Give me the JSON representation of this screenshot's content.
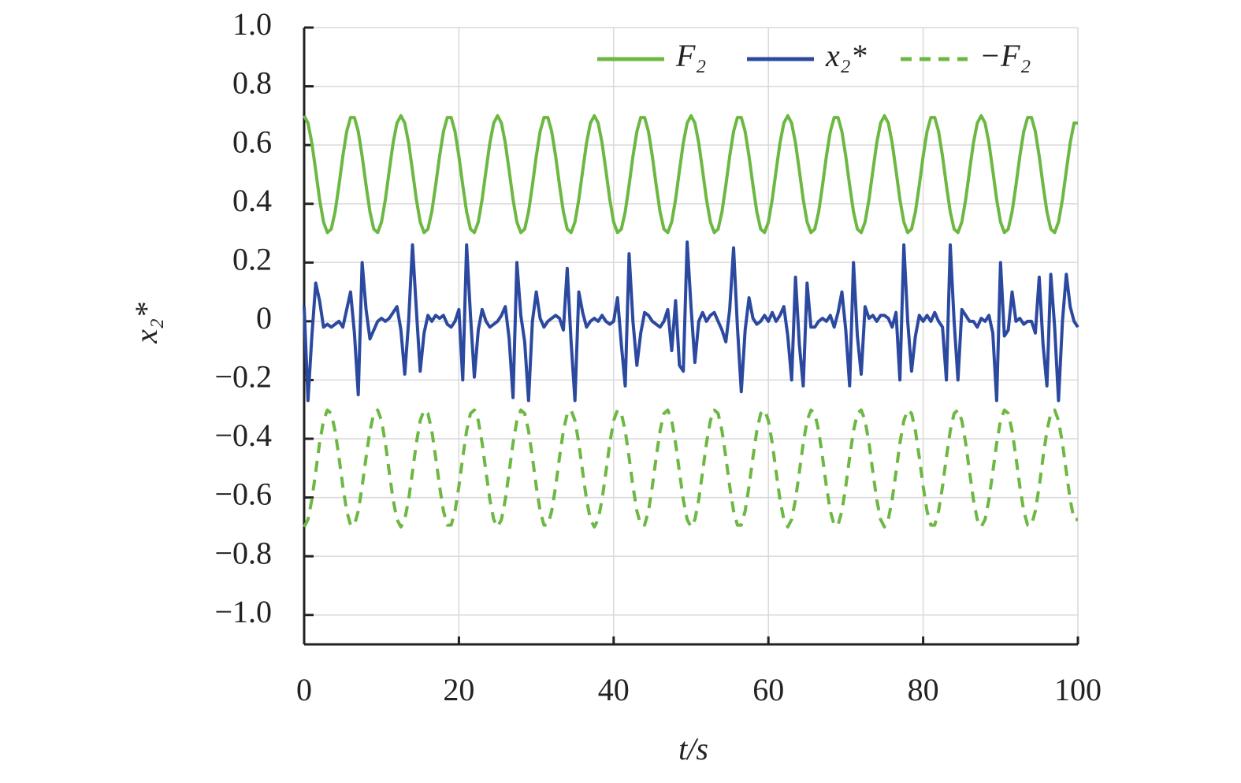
{
  "chart_data": {
    "type": "line",
    "x_label": "t/s",
    "y_label": "x₂*",
    "xlim": [
      0,
      100
    ],
    "ylim": [
      -1.1,
      1.0
    ],
    "xticks": [
      0,
      20,
      40,
      60,
      80,
      100
    ],
    "yticks": [
      {
        "value": 1.0,
        "label": "1.0"
      },
      0.8,
      0.6,
      0.4,
      0.2,
      0,
      {
        "value": -0.2,
        "label": "−0.2"
      },
      {
        "value": -0.4,
        "label": "−0.4"
      },
      {
        "value": -0.6,
        "label": "−0.6"
      },
      {
        "value": -0.8,
        "label": "−0.8"
      },
      {
        "value": -1.0,
        "label": "−1.0"
      }
    ],
    "grid": true,
    "legend": "upper right",
    "x": [
      0,
      0.5,
      1,
      1.5,
      2,
      2.5,
      3,
      3.5,
      4,
      4.5,
      5,
      5.5,
      6,
      6.5,
      7,
      7.5,
      8,
      8.5,
      9,
      9.5,
      10,
      10.5,
      11,
      11.5,
      12,
      12.5,
      13,
      13.5,
      14,
      14.5,
      15,
      15.5,
      16,
      16.5,
      17,
      17.5,
      18,
      18.5,
      19,
      19.5,
      20,
      20.5,
      21,
      21.5,
      22,
      22.5,
      23,
      23.5,
      24,
      24.5,
      25,
      25.5,
      26,
      26.5,
      27,
      27.5,
      28,
      28.5,
      29,
      29.5,
      30,
      30.5,
      31,
      31.5,
      32,
      32.5,
      33,
      33.5,
      34,
      34.5,
      35,
      35.5,
      36,
      36.5,
      37,
      37.5,
      38,
      38.5,
      39,
      39.5,
      40,
      40.5,
      41,
      41.5,
      42,
      42.5,
      43,
      43.5,
      44,
      44.5,
      45,
      45.5,
      46,
      46.5,
      47,
      47.5,
      48,
      48.5,
      49,
      49.5,
      50,
      50.5,
      51,
      51.5,
      52,
      52.5,
      53,
      53.5,
      54,
      54.5,
      55,
      55.5,
      56,
      56.5,
      57,
      57.5,
      58,
      58.5,
      59,
      59.5,
      60,
      60.5,
      61,
      61.5,
      62,
      62.5,
      63,
      63.5,
      64,
      64.5,
      65,
      65.5,
      66,
      66.5,
      67,
      67.5,
      68,
      68.5,
      69,
      69.5,
      70,
      70.5,
      71,
      71.5,
      72,
      72.5,
      73,
      73.5,
      74,
      74.5,
      75,
      75.5,
      76,
      76.5,
      77,
      77.5,
      78,
      78.5,
      79,
      79.5,
      80,
      80.5,
      81,
      81.5,
      82,
      82.5,
      83,
      83.5,
      84,
      84.5,
      85,
      85.5,
      86,
      86.5,
      87,
      87.5,
      88,
      88.5,
      89,
      89.5,
      90,
      90.5,
      91,
      91.5,
      92,
      92.5,
      93,
      93.5,
      94,
      94.5,
      95,
      95.5,
      96,
      96.5,
      97,
      97.5,
      98,
      98.5,
      99,
      99.5,
      100
    ],
    "series": [
      {
        "name": "F₂",
        "color": "#6cb843",
        "style": "solid",
        "values": [
          0.7,
          0.675,
          0.607,
          0.513,
          0.415,
          0.338,
          0.302,
          0.314,
          0.373,
          0.463,
          0.562,
          0.646,
          0.694,
          0.694,
          0.646,
          0.562,
          0.463,
          0.373,
          0.314,
          0.302,
          0.338,
          0.415,
          0.513,
          0.607,
          0.675,
          0.7,
          0.675,
          0.607,
          0.513,
          0.415,
          0.338,
          0.302,
          0.314,
          0.373,
          0.463,
          0.562,
          0.646,
          0.694,
          0.694,
          0.646,
          0.562,
          0.463,
          0.373,
          0.314,
          0.302,
          0.338,
          0.415,
          0.513,
          0.607,
          0.675,
          0.7,
          0.675,
          0.607,
          0.513,
          0.415,
          0.338,
          0.302,
          0.314,
          0.373,
          0.463,
          0.562,
          0.646,
          0.694,
          0.694,
          0.646,
          0.562,
          0.463,
          0.373,
          0.314,
          0.302,
          0.338,
          0.415,
          0.513,
          0.607,
          0.675,
          0.7,
          0.675,
          0.607,
          0.513,
          0.415,
          0.338,
          0.302,
          0.314,
          0.373,
          0.463,
          0.562,
          0.646,
          0.694,
          0.694,
          0.646,
          0.562,
          0.463,
          0.373,
          0.314,
          0.302,
          0.338,
          0.415,
          0.513,
          0.607,
          0.675,
          0.7,
          0.675,
          0.607,
          0.513,
          0.415,
          0.338,
          0.302,
          0.314,
          0.373,
          0.463,
          0.562,
          0.646,
          0.694,
          0.694,
          0.646,
          0.562,
          0.463,
          0.373,
          0.314,
          0.302,
          0.338,
          0.415,
          0.513,
          0.607,
          0.675,
          0.7,
          0.675,
          0.607,
          0.513,
          0.415,
          0.338,
          0.302,
          0.314,
          0.373,
          0.463,
          0.562,
          0.646,
          0.694,
          0.694,
          0.646,
          0.562,
          0.463,
          0.373,
          0.314,
          0.302,
          0.338,
          0.415,
          0.513,
          0.607,
          0.675,
          0.7,
          0.675,
          0.607,
          0.513,
          0.415,
          0.338,
          0.302,
          0.314,
          0.373,
          0.463,
          0.562,
          0.646,
          0.694,
          0.694,
          0.646,
          0.562,
          0.463,
          0.373,
          0.314,
          0.302,
          0.338,
          0.415,
          0.513,
          0.607,
          0.675,
          0.7,
          0.675,
          0.607,
          0.513,
          0.415,
          0.338,
          0.302,
          0.314,
          0.373,
          0.463,
          0.562,
          0.646,
          0.694,
          0.694,
          0.646,
          0.562,
          0.463,
          0.373,
          0.314,
          0.302,
          0.338,
          0.415,
          0.513,
          0.607,
          0.675,
          0.675
        ]
      },
      {
        "name": "x₂*",
        "color": "#2c49a0",
        "style": "solid",
        "values": [
          0.05,
          -0.27,
          -0.05,
          0.13,
          0.07,
          -0.02,
          -0.01,
          -0.02,
          -0.01,
          0.0,
          -0.02,
          0.04,
          0.1,
          -0.04,
          -0.25,
          0.2,
          0.04,
          -0.06,
          -0.03,
          0.0,
          0.01,
          0.0,
          0.01,
          0.03,
          0.05,
          -0.03,
          -0.18,
          0.0,
          0.26,
          0.04,
          -0.17,
          -0.04,
          0.02,
          0.0,
          0.02,
          0.01,
          0.02,
          -0.01,
          -0.02,
          0.0,
          0.04,
          -0.2,
          0.26,
          0.02,
          -0.19,
          -0.03,
          0.04,
          0.0,
          -0.02,
          -0.01,
          0.0,
          0.02,
          0.05,
          -0.06,
          -0.26,
          0.2,
          0.02,
          -0.07,
          -0.27,
          0.0,
          0.1,
          0.01,
          -0.02,
          0.0,
          0.01,
          0.02,
          0.01,
          -0.03,
          0.18,
          -0.07,
          -0.27,
          0.1,
          0.03,
          -0.02,
          0.0,
          0.01,
          0.0,
          0.02,
          0.0,
          -0.01,
          0.0,
          0.08,
          -0.08,
          -0.22,
          0.23,
          0.0,
          -0.15,
          -0.04,
          0.03,
          0.02,
          0.0,
          -0.01,
          -0.02,
          0.0,
          0.04,
          -0.1,
          0.07,
          -0.15,
          -0.17,
          0.27,
          0.05,
          -0.14,
          0.0,
          0.03,
          0.0,
          0.02,
          0.03,
          0.0,
          -0.03,
          -0.07,
          0.04,
          0.25,
          -0.02,
          -0.24,
          -0.03,
          0.08,
          0.01,
          -0.01,
          0.0,
          0.02,
          0.0,
          0.03,
          0.0,
          0.02,
          0.05,
          -0.05,
          -0.2,
          0.15,
          -0.08,
          -0.22,
          0.13,
          -0.02,
          -0.02,
          0.0,
          0.01,
          0.0,
          0.02,
          -0.02,
          0.03,
          0.1,
          -0.03,
          -0.22,
          0.2,
          -0.05,
          -0.18,
          0.05,
          0.01,
          0.02,
          0.0,
          0.02,
          0.02,
          0.01,
          -0.02,
          0.03,
          -0.2,
          0.26,
          0.0,
          -0.17,
          -0.05,
          0.02,
          0.0,
          0.02,
          0.0,
          0.03,
          0.0,
          -0.02,
          -0.2,
          0.26,
          0.0,
          -0.2,
          0.04,
          0.02,
          0.0,
          0.0,
          -0.02,
          0.01,
          0.0,
          0.02,
          -0.04,
          -0.27,
          0.2,
          -0.05,
          -0.03,
          0.1,
          0.0,
          0.01,
          -0.01,
          0.0,
          0.0,
          -0.04,
          0.15,
          -0.08,
          -0.22,
          0.16,
          -0.02,
          -0.27,
          0.0,
          0.16,
          0.05,
          0.0,
          -0.02
        ]
      },
      {
        "name": "−F₂",
        "color": "#6cb843",
        "style": "dashed",
        "values": [
          -0.7,
          -0.675,
          -0.607,
          -0.513,
          -0.415,
          -0.338,
          -0.302,
          -0.314,
          -0.373,
          -0.463,
          -0.562,
          -0.646,
          -0.694,
          -0.694,
          -0.646,
          -0.562,
          -0.463,
          -0.373,
          -0.314,
          -0.302,
          -0.338,
          -0.415,
          -0.513,
          -0.607,
          -0.675,
          -0.7,
          -0.675,
          -0.607,
          -0.513,
          -0.415,
          -0.338,
          -0.302,
          -0.314,
          -0.373,
          -0.463,
          -0.562,
          -0.646,
          -0.694,
          -0.694,
          -0.646,
          -0.562,
          -0.463,
          -0.373,
          -0.314,
          -0.302,
          -0.338,
          -0.415,
          -0.513,
          -0.607,
          -0.675,
          -0.7,
          -0.675,
          -0.607,
          -0.513,
          -0.415,
          -0.338,
          -0.302,
          -0.314,
          -0.373,
          -0.463,
          -0.562,
          -0.646,
          -0.694,
          -0.694,
          -0.646,
          -0.562,
          -0.463,
          -0.373,
          -0.314,
          -0.302,
          -0.338,
          -0.415,
          -0.513,
          -0.607,
          -0.675,
          -0.7,
          -0.675,
          -0.607,
          -0.513,
          -0.415,
          -0.338,
          -0.302,
          -0.314,
          -0.373,
          -0.463,
          -0.562,
          -0.646,
          -0.694,
          -0.694,
          -0.646,
          -0.562,
          -0.463,
          -0.373,
          -0.314,
          -0.302,
          -0.338,
          -0.415,
          -0.513,
          -0.607,
          -0.675,
          -0.7,
          -0.675,
          -0.607,
          -0.513,
          -0.415,
          -0.338,
          -0.302,
          -0.314,
          -0.373,
          -0.463,
          -0.562,
          -0.646,
          -0.694,
          -0.694,
          -0.646,
          -0.562,
          -0.463,
          -0.373,
          -0.314,
          -0.302,
          -0.338,
          -0.415,
          -0.513,
          -0.607,
          -0.675,
          -0.7,
          -0.675,
          -0.607,
          -0.513,
          -0.415,
          -0.338,
          -0.302,
          -0.314,
          -0.373,
          -0.463,
          -0.562,
          -0.646,
          -0.694,
          -0.694,
          -0.646,
          -0.562,
          -0.463,
          -0.373,
          -0.314,
          -0.302,
          -0.338,
          -0.415,
          -0.513,
          -0.607,
          -0.675,
          -0.7,
          -0.675,
          -0.607,
          -0.513,
          -0.415,
          -0.338,
          -0.302,
          -0.314,
          -0.373,
          -0.463,
          -0.562,
          -0.646,
          -0.694,
          -0.694,
          -0.646,
          -0.562,
          -0.463,
          -0.373,
          -0.314,
          -0.302,
          -0.338,
          -0.415,
          -0.513,
          -0.607,
          -0.675,
          -0.7,
          -0.675,
          -0.607,
          -0.513,
          -0.415,
          -0.338,
          -0.302,
          -0.314,
          -0.373,
          -0.463,
          -0.562,
          -0.646,
          -0.694,
          -0.694,
          -0.646,
          -0.562,
          -0.463,
          -0.373,
          -0.314,
          -0.302,
          -0.338,
          -0.415,
          -0.513,
          -0.607,
          -0.675,
          -0.675
        ]
      }
    ]
  }
}
